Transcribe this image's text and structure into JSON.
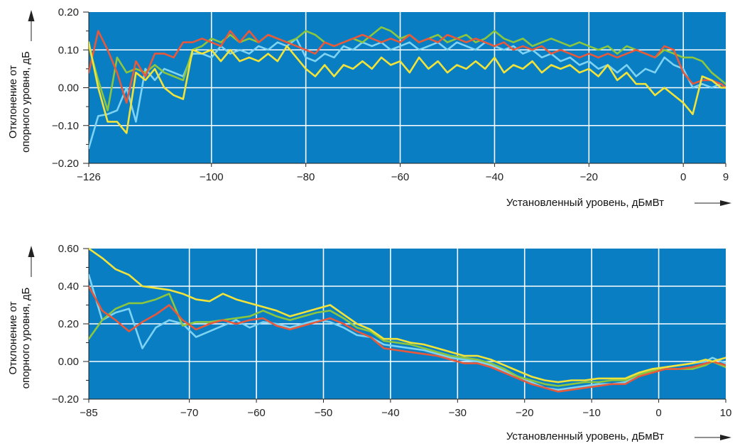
{
  "chart_data": [
    {
      "type": "line",
      "xlabel": "Установленный уровень, дБмВт",
      "ylabel": "Отклонение от опорного уровня, дБ",
      "xlim": [
        -126,
        9
      ],
      "ylim": [
        -0.2,
        0.2
      ],
      "x_ticks": [
        -126,
        -100,
        -80,
        -60,
        -40,
        -20,
        0,
        9
      ],
      "x_tick_labels": [
        "−126",
        "−100",
        "−80",
        "−60",
        "−40",
        "−20",
        "0",
        "9"
      ],
      "y_ticks": [
        -0.2,
        -0.1,
        0.0,
        0.1,
        0.2
      ],
      "y_tick_labels": [
        "−0.20",
        "−0.10",
        "0.00",
        "0.10",
        "0.20"
      ],
      "grid": true,
      "background": "#0a7ec2",
      "series": [
        {
          "color": "#7ed3f2",
          "x": [
            -126,
            -124,
            -122,
            -120,
            -118,
            -116,
            -114,
            -112,
            -110,
            -108,
            -106,
            -104,
            -102,
            -100,
            -98,
            -96,
            -94,
            -92,
            -90,
            -88,
            -86,
            -84,
            -82,
            -80,
            -78,
            -76,
            -74,
            -72,
            -70,
            -68,
            -66,
            -64,
            -62,
            -60,
            -58,
            -56,
            -54,
            -52,
            -50,
            -48,
            -46,
            -44,
            -42,
            -40,
            -38,
            -36,
            -34,
            -32,
            -30,
            -28,
            -26,
            -24,
            -22,
            -20,
            -18,
            -16,
            -14,
            -12,
            -10,
            -8,
            -6,
            -4,
            -2,
            0,
            2,
            4,
            6,
            8,
            9
          ],
          "y": [
            -0.16,
            -0.075,
            -0.07,
            -0.06,
            0.0,
            -0.09,
            0.05,
            0.02,
            0.05,
            0.04,
            0.03,
            0.09,
            0.09,
            0.08,
            0.11,
            0.09,
            0.1,
            0.09,
            0.11,
            0.1,
            0.12,
            0.11,
            0.13,
            0.08,
            0.07,
            0.09,
            0.08,
            0.11,
            0.1,
            0.12,
            0.11,
            0.12,
            0.1,
            0.11,
            0.12,
            0.1,
            0.11,
            0.12,
            0.1,
            0.12,
            0.11,
            0.1,
            0.12,
            0.11,
            0.1,
            0.11,
            0.09,
            0.1,
            0.08,
            0.09,
            0.07,
            0.08,
            0.06,
            0.07,
            0.05,
            0.06,
            0.04,
            0.06,
            0.03,
            0.05,
            0.04,
            0.08,
            0.06,
            0.05,
            0.0,
            0.01,
            0.0,
            0.01,
            0.0
          ]
        },
        {
          "color": "#8cc63f",
          "x": [
            -126,
            -124,
            -122,
            -120,
            -118,
            -116,
            -114,
            -112,
            -110,
            -108,
            -106,
            -104,
            -102,
            -100,
            -98,
            -96,
            -94,
            -92,
            -90,
            -88,
            -86,
            -84,
            -82,
            -80,
            -78,
            -76,
            -74,
            -72,
            -70,
            -68,
            -66,
            -64,
            -62,
            -60,
            -58,
            -56,
            -54,
            -52,
            -50,
            -48,
            -46,
            -44,
            -42,
            -40,
            -38,
            -36,
            -34,
            -32,
            -30,
            -28,
            -26,
            -24,
            -22,
            -20,
            -18,
            -16,
            -14,
            -12,
            -10,
            -8,
            -6,
            -4,
            -2,
            0,
            2,
            4,
            6,
            8,
            9
          ],
          "y": [
            0.11,
            0.02,
            -0.06,
            0.08,
            0.04,
            0.05,
            0.04,
            0.06,
            0.04,
            0.03,
            0.02,
            0.1,
            0.11,
            0.13,
            0.12,
            0.14,
            0.12,
            0.13,
            0.12,
            0.14,
            0.13,
            0.12,
            0.13,
            0.15,
            0.14,
            0.12,
            0.11,
            0.12,
            0.13,
            0.12,
            0.14,
            0.16,
            0.15,
            0.13,
            0.14,
            0.12,
            0.13,
            0.14,
            0.12,
            0.13,
            0.14,
            0.12,
            0.13,
            0.15,
            0.13,
            0.12,
            0.13,
            0.11,
            0.12,
            0.13,
            0.12,
            0.11,
            0.12,
            0.11,
            0.1,
            0.11,
            0.09,
            0.11,
            0.1,
            0.09,
            0.08,
            0.1,
            0.09,
            0.08,
            0.08,
            0.07,
            0.04,
            0.02,
            0.01
          ]
        },
        {
          "color": "#e8583a",
          "x": [
            -126,
            -124,
            -122,
            -120,
            -118,
            -116,
            -114,
            -112,
            -110,
            -108,
            -106,
            -104,
            -102,
            -100,
            -98,
            -96,
            -94,
            -92,
            -90,
            -88,
            -86,
            -84,
            -82,
            -80,
            -78,
            -76,
            -74,
            -72,
            -70,
            -68,
            -66,
            -64,
            -62,
            -60,
            -58,
            -56,
            -54,
            -52,
            -50,
            -48,
            -46,
            -44,
            -42,
            -40,
            -38,
            -36,
            -34,
            -32,
            -30,
            -28,
            -26,
            -24,
            -22,
            -20,
            -18,
            -16,
            -14,
            -12,
            -10,
            -8,
            -6,
            -4,
            -2,
            0,
            2,
            4,
            6,
            8,
            9
          ],
          "y": [
            0.04,
            0.15,
            0.1,
            0.04,
            -0.04,
            0.07,
            0.03,
            0.09,
            0.09,
            0.08,
            0.12,
            0.12,
            0.13,
            0.12,
            0.11,
            0.15,
            0.12,
            0.15,
            0.12,
            0.14,
            0.13,
            0.12,
            0.11,
            0.1,
            0.09,
            0.12,
            0.11,
            0.12,
            0.13,
            0.14,
            0.13,
            0.12,
            0.13,
            0.12,
            0.14,
            0.12,
            0.13,
            0.12,
            0.14,
            0.13,
            0.12,
            0.13,
            0.12,
            0.11,
            0.12,
            0.1,
            0.11,
            0.1,
            0.11,
            0.09,
            0.1,
            0.09,
            0.08,
            0.09,
            0.08,
            0.09,
            0.08,
            0.09,
            0.1,
            0.09,
            0.08,
            0.11,
            0.1,
            0.04,
            0.01,
            0.02,
            0.02,
            0.01,
            0.0
          ]
        },
        {
          "color": "#f2e33a",
          "x": [
            -126,
            -124,
            -122,
            -120,
            -118,
            -116,
            -114,
            -112,
            -110,
            -108,
            -106,
            -104,
            -102,
            -100,
            -98,
            -96,
            -94,
            -92,
            -90,
            -88,
            -86,
            -84,
            -82,
            -80,
            -78,
            -76,
            -74,
            -72,
            -70,
            -68,
            -66,
            -64,
            -62,
            -60,
            -58,
            -56,
            -54,
            -52,
            -50,
            -48,
            -46,
            -44,
            -42,
            -40,
            -38,
            -36,
            -34,
            -32,
            -30,
            -28,
            -26,
            -24,
            -22,
            -20,
            -18,
            -16,
            -14,
            -12,
            -10,
            -8,
            -6,
            -4,
            -2,
            0,
            2,
            4,
            6,
            8,
            9
          ],
          "y": [
            0.12,
            0.0,
            -0.09,
            -0.09,
            -0.12,
            0.04,
            0.02,
            0.05,
            0.0,
            -0.02,
            -0.03,
            0.1,
            0.09,
            0.1,
            0.07,
            0.1,
            0.07,
            0.08,
            0.07,
            0.09,
            0.07,
            0.11,
            0.08,
            0.05,
            0.03,
            0.06,
            0.03,
            0.06,
            0.05,
            0.07,
            0.05,
            0.08,
            0.06,
            0.07,
            0.04,
            0.08,
            0.05,
            0.07,
            0.04,
            0.06,
            0.05,
            0.07,
            0.05,
            0.08,
            0.04,
            0.06,
            0.05,
            0.07,
            0.04,
            0.06,
            0.05,
            0.06,
            0.04,
            0.05,
            0.03,
            0.06,
            0.02,
            0.04,
            0.01,
            0.01,
            -0.02,
            0.0,
            -0.02,
            -0.04,
            -0.07,
            0.03,
            0.02,
            0.0,
            0.0
          ]
        }
      ]
    },
    {
      "type": "line",
      "xlabel": "Установленный уровень, дБмВт",
      "ylabel": "Отклонение от опорного уровня, дБ",
      "xlim": [
        -85,
        10
      ],
      "ylim": [
        -0.2,
        0.6
      ],
      "x_ticks": [
        -85,
        -70,
        -60,
        -50,
        -40,
        -30,
        -20,
        -10,
        0,
        10
      ],
      "x_tick_labels": [
        "−85",
        "−70",
        "−60",
        "−50",
        "−40",
        "−30",
        "−20",
        "−10",
        "0",
        "10"
      ],
      "y_ticks": [
        -0.2,
        0.0,
        0.2,
        0.4,
        0.6
      ],
      "y_tick_labels": [
        "−0.20",
        "0.00",
        "0.20",
        "0.40",
        "0.60"
      ],
      "grid": true,
      "background": "#0a7ec2",
      "series": [
        {
          "color": "#7ed3f2",
          "x": [
            -85,
            -83,
            -81,
            -79,
            -77,
            -75,
            -73,
            -71,
            -69,
            -67,
            -65,
            -63,
            -61,
            -59,
            -57,
            -55,
            -53,
            -51,
            -49,
            -47,
            -45,
            -43,
            -41,
            -39,
            -37,
            -35,
            -33,
            -31,
            -29,
            -27,
            -25,
            -23,
            -21,
            -19,
            -17,
            -15,
            -13,
            -11,
            -9,
            -7,
            -5,
            -3,
            -1,
            1,
            3,
            5,
            7,
            8,
            10
          ],
          "y": [
            0.46,
            0.22,
            0.26,
            0.28,
            0.07,
            0.18,
            0.22,
            0.2,
            0.13,
            0.16,
            0.19,
            0.22,
            0.18,
            0.21,
            0.2,
            0.18,
            0.2,
            0.22,
            0.21,
            0.18,
            0.14,
            0.13,
            0.09,
            0.08,
            0.07,
            0.06,
            0.04,
            0.02,
            0.01,
            0.0,
            -0.02,
            -0.05,
            -0.08,
            -0.11,
            -0.14,
            -0.15,
            -0.14,
            -0.13,
            -0.12,
            -0.12,
            -0.11,
            -0.08,
            -0.05,
            -0.03,
            -0.02,
            -0.01,
            0.0,
            0.02,
            -0.01
          ]
        },
        {
          "color": "#8cc63f",
          "x": [
            -85,
            -83,
            -81,
            -79,
            -77,
            -75,
            -73,
            -71,
            -69,
            -67,
            -65,
            -63,
            -61,
            -59,
            -57,
            -55,
            -53,
            -51,
            -49,
            -47,
            -45,
            -43,
            -41,
            -39,
            -37,
            -35,
            -33,
            -31,
            -29,
            -27,
            -25,
            -23,
            -21,
            -19,
            -17,
            -15,
            -13,
            -11,
            -9,
            -7,
            -5,
            -3,
            -1,
            1,
            3,
            5,
            7,
            8,
            10
          ],
          "y": [
            0.12,
            0.22,
            0.28,
            0.31,
            0.31,
            0.33,
            0.36,
            0.19,
            0.21,
            0.21,
            0.22,
            0.23,
            0.24,
            0.27,
            0.24,
            0.22,
            0.24,
            0.26,
            0.27,
            0.23,
            0.18,
            0.16,
            0.11,
            0.1,
            0.09,
            0.07,
            0.05,
            0.03,
            0.02,
            0.01,
            -0.01,
            -0.04,
            -0.08,
            -0.1,
            -0.12,
            -0.13,
            -0.12,
            -0.11,
            -0.11,
            -0.1,
            -0.1,
            -0.07,
            -0.05,
            -0.04,
            -0.04,
            -0.04,
            -0.02,
            0.0,
            -0.03
          ]
        },
        {
          "color": "#e8583a",
          "x": [
            -85,
            -83,
            -81,
            -79,
            -77,
            -75,
            -73,
            -71,
            -69,
            -67,
            -65,
            -63,
            -61,
            -59,
            -57,
            -55,
            -53,
            -51,
            -49,
            -47,
            -45,
            -43,
            -41,
            -39,
            -37,
            -35,
            -33,
            -31,
            -29,
            -27,
            -25,
            -23,
            -21,
            -19,
            -17,
            -15,
            -13,
            -11,
            -9,
            -7,
            -5,
            -3,
            -1,
            1,
            3,
            5,
            7,
            8,
            10
          ],
          "y": [
            0.4,
            0.27,
            0.22,
            0.16,
            0.21,
            0.25,
            0.3,
            0.22,
            0.17,
            0.2,
            0.22,
            0.2,
            0.22,
            0.23,
            0.19,
            0.17,
            0.19,
            0.21,
            0.23,
            0.2,
            0.16,
            0.13,
            0.07,
            0.06,
            0.05,
            0.04,
            0.03,
            0.01,
            -0.01,
            -0.01,
            -0.03,
            -0.06,
            -0.09,
            -0.12,
            -0.14,
            -0.16,
            -0.15,
            -0.14,
            -0.13,
            -0.12,
            -0.12,
            -0.08,
            -0.06,
            -0.04,
            -0.04,
            -0.03,
            -0.01,
            0.0,
            -0.02
          ]
        },
        {
          "color": "#f2e33a",
          "x": [
            -85,
            -83,
            -81,
            -79,
            -77,
            -75,
            -73,
            -71,
            -69,
            -67,
            -65,
            -63,
            -61,
            -59,
            -57,
            -55,
            -53,
            -51,
            -49,
            -47,
            -45,
            -43,
            -41,
            -39,
            -37,
            -35,
            -33,
            -31,
            -29,
            -27,
            -25,
            -23,
            -21,
            -19,
            -17,
            -15,
            -13,
            -11,
            -9,
            -7,
            -5,
            -3,
            -1,
            1,
            3,
            5,
            7,
            8,
            10
          ],
          "y": [
            0.6,
            0.55,
            0.49,
            0.46,
            0.4,
            0.39,
            0.38,
            0.36,
            0.33,
            0.32,
            0.36,
            0.33,
            0.31,
            0.29,
            0.27,
            0.24,
            0.26,
            0.28,
            0.3,
            0.25,
            0.2,
            0.17,
            0.12,
            0.12,
            0.1,
            0.09,
            0.07,
            0.05,
            0.03,
            0.03,
            0.01,
            -0.02,
            -0.05,
            -0.08,
            -0.1,
            -0.11,
            -0.1,
            -0.1,
            -0.09,
            -0.09,
            -0.09,
            -0.06,
            -0.04,
            -0.03,
            -0.02,
            -0.01,
            0.01,
            0.0,
            0.02
          ]
        }
      ]
    }
  ]
}
